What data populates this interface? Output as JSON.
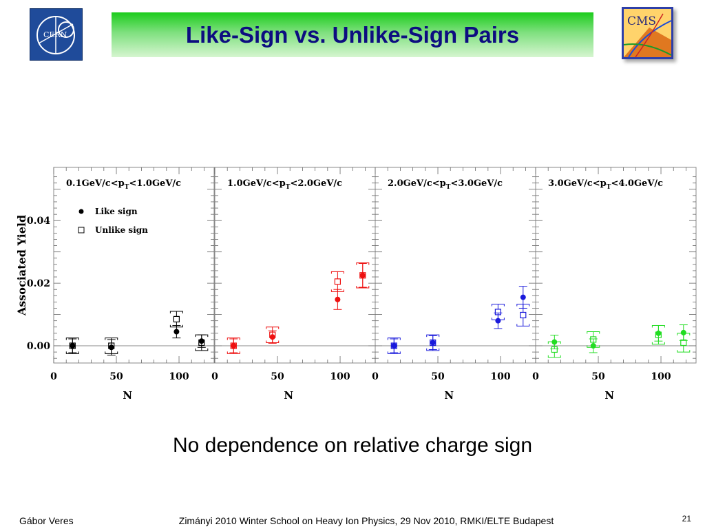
{
  "slide": {
    "title": "Like-Sign vs. Unlike-Sign Pairs",
    "subtitle": "No dependence on relative charge sign",
    "footer": {
      "author": "Gábor Veres",
      "event": "Zimányi 2010 Winter School on Heavy Ion Physics, 29 Nov 2010, RMKI/ELTE Budapest",
      "page": "21"
    },
    "logos": {
      "left_text": "CERN",
      "right_text": "CMS"
    },
    "colors": {
      "title_bar_top": "#1ccc1c",
      "title_bar_bottom": "#d6f5d0",
      "title_text": "#0d0d80"
    }
  },
  "chart_data": {
    "type": "scatter",
    "ylabel": "Associated Yield",
    "xlabel": "N",
    "ylim": [
      -0.0055,
      0.057
    ],
    "xlim": [
      0,
      128
    ],
    "y_ticks": [
      "0.00",
      "0.02",
      "0.04"
    ],
    "y_tick_values": [
      0.0,
      0.02,
      0.04
    ],
    "x_ticks": [
      "0",
      "50",
      "100"
    ],
    "x_tick_values": [
      0,
      50,
      100
    ],
    "legend": {
      "placement": "top-left of first panel",
      "items": [
        "Like sign",
        "Unlike sign"
      ]
    },
    "panels": [
      {
        "label_pre": "0.1GeV/c<p",
        "label_sub": "T",
        "label_post": "<1.0GeV/c",
        "color": "#000000",
        "like": [
          {
            "x": 15,
            "y": 0.0,
            "box": 0.0022
          },
          {
            "x": 46,
            "y": -0.0005,
            "box": 0.0025
          },
          {
            "x": 98,
            "y": 0.0045,
            "box": 0.002
          },
          {
            "x": 118,
            "y": 0.0015,
            "box": 0.002
          }
        ],
        "unlike": [
          {
            "x": 15,
            "y": 0.0,
            "box": 0.0025
          },
          {
            "x": 46,
            "y": 0.0,
            "box": 0.0025
          },
          {
            "x": 98,
            "y": 0.0085,
            "box": 0.0025
          },
          {
            "x": 118,
            "y": 0.001,
            "box": 0.0025
          }
        ]
      },
      {
        "label_pre": "1.0GeV/c<p",
        "label_sub": "T",
        "label_post": "<2.0GeV/c",
        "color": "#ee1111",
        "like": [
          {
            "x": 15,
            "y": 0.0,
            "box": 0.0022
          },
          {
            "x": 46,
            "y": 0.0028,
            "box": 0.002
          },
          {
            "x": 98,
            "y": 0.0148,
            "box": 0.0032
          },
          {
            "x": 118,
            "y": 0.0225,
            "box": 0.0038
          }
        ],
        "unlike": [
          {
            "x": 15,
            "y": 0.0,
            "box": 0.0025
          },
          {
            "x": 46,
            "y": 0.0035,
            "box": 0.0025
          },
          {
            "x": 98,
            "y": 0.0205,
            "box": 0.0032
          },
          {
            "x": 118,
            "y": 0.0225,
            "box": 0.004
          }
        ]
      },
      {
        "label_pre": "2.0GeV/c<p",
        "label_sub": "T",
        "label_post": "<3.0GeV/c",
        "color": "#1a1adb",
        "like": [
          {
            "x": 15,
            "y": 0.0,
            "box": 0.0022
          },
          {
            "x": 46,
            "y": 0.001,
            "box": 0.0022
          },
          {
            "x": 98,
            "y": 0.008,
            "box": 0.0025
          },
          {
            "x": 118,
            "y": 0.0155,
            "box": 0.0035
          }
        ],
        "unlike": [
          {
            "x": 15,
            "y": 0.0,
            "box": 0.0025
          },
          {
            "x": 46,
            "y": 0.001,
            "box": 0.0025
          },
          {
            "x": 98,
            "y": 0.0108,
            "box": 0.0025
          },
          {
            "x": 118,
            "y": 0.0098,
            "box": 0.0035
          }
        ]
      },
      {
        "label_pre": "3.0GeV/c<p",
        "label_sub": "T",
        "label_post": "<4.0GeV/c",
        "color": "#22dd22",
        "like": [
          {
            "x": 15,
            "y": 0.0012,
            "box": 0.0022
          },
          {
            "x": 46,
            "y": 0.0,
            "box": 0.0022
          },
          {
            "x": 98,
            "y": 0.004,
            "box": 0.0025
          },
          {
            "x": 118,
            "y": 0.0042,
            "box": 0.0025
          }
        ],
        "unlike": [
          {
            "x": 15,
            "y": -0.0012,
            "box": 0.0025
          },
          {
            "x": 46,
            "y": 0.002,
            "box": 0.0025
          },
          {
            "x": 98,
            "y": 0.0035,
            "box": 0.003
          },
          {
            "x": 118,
            "y": 0.001,
            "box": 0.003
          }
        ]
      }
    ]
  }
}
